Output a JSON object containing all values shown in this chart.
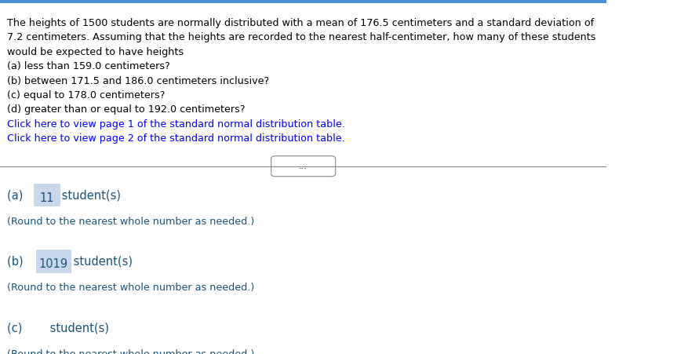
{
  "bg_color": "#ffffff",
  "top_bar_color": "#4a90d9",
  "top_bar_height": 0.012,
  "body_text_color": "#000000",
  "link_color": "#0000ff",
  "answer_color": "#1a5276",
  "highlight_box_color": "#c8d8ea",
  "separator_color": "#888888",
  "paragraph_text": "The heights of 1500 students are normally distributed with a mean of 176.5 centimeters and a standard deviation of\n7.2 centimeters. Assuming that the heights are recorded to the nearest half-centimeter, how many of these students\nwould be expected to have heights",
  "questions": [
    "(a) less than 159.0 centimeters?",
    "(b) between 171.5 and 186.0 centimeters inclusive?",
    "(c) equal to 178.0 centimeters?",
    "(d) greater than or equal to 192.0 centimeters?"
  ],
  "link1": "Click here to view page 1 of the standard normal distribution table.",
  "link2": "Click here to view page 2 of the standard normal distribution table.",
  "answer_a_prefix": "(a) ",
  "answer_a_value": "11",
  "answer_a_suffix": " student(s)",
  "answer_a_round": "(Round to the nearest whole number as needed.)",
  "answer_b_prefix": "(b)  ",
  "answer_b_value": "1019",
  "answer_b_suffix": " student(s)",
  "answer_b_round": "(Round to the nearest whole number as needed.)",
  "answer_c_prefix": "(c) ",
  "answer_c_suffix": " student(s)",
  "answer_c_round": "(Round to the nearest whole number as needed.)",
  "dots_text": "..."
}
